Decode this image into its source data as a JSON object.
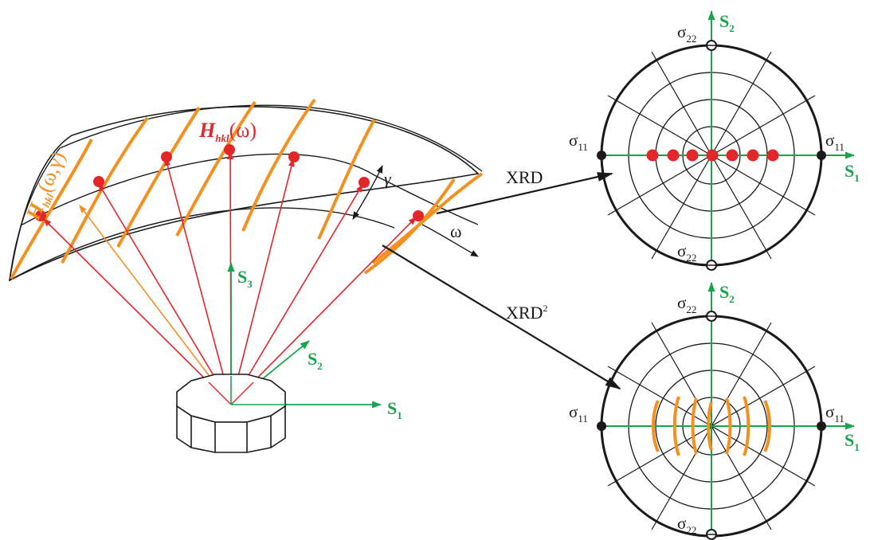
{
  "labels": {
    "h_omega_main": "H",
    "h_omega_sub": "hkl",
    "h_omega_arg": "(ω)",
    "h_omega_gamma_main": "H",
    "h_omega_gamma_sub": "hkl",
    "h_omega_gamma_arg": "(ω,γ)",
    "gamma": "γ",
    "omega": "ω",
    "xrd": "XRD",
    "xrd2_main": "XRD",
    "xrd2_sup": "2",
    "s_letter": "S",
    "s1_sub": "1",
    "s2_sub": "2",
    "s3_sub": "3",
    "sigma": "σ",
    "sigma11_sub": "11",
    "sigma22_sub": "22"
  },
  "colors": {
    "red": "#e3262a",
    "orange": "#f39020",
    "green": "#16a54a",
    "black": "#1a1a1a"
  }
}
